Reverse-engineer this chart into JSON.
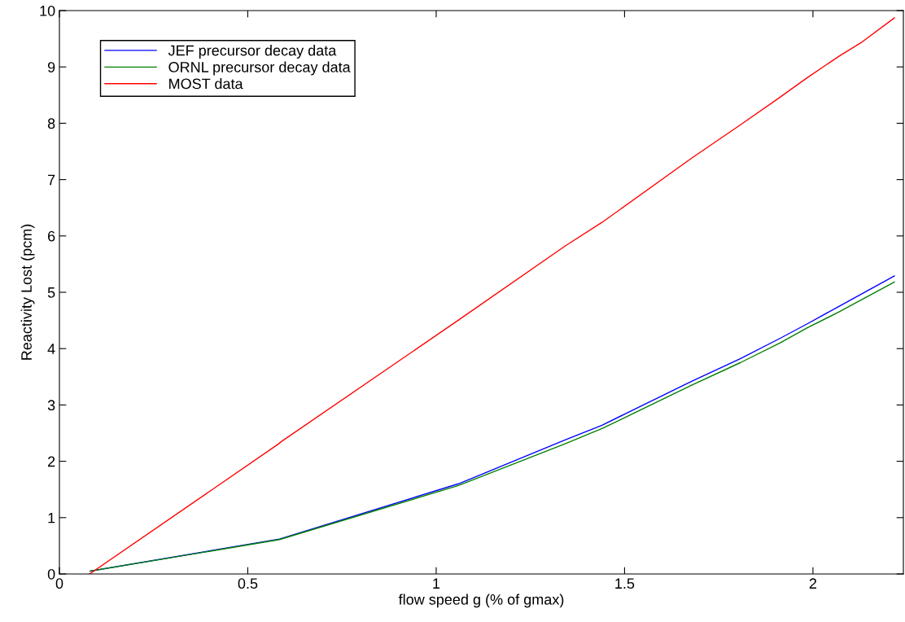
{
  "chart_data": {
    "type": "line",
    "xlabel": "flow speed g (% of gmax)",
    "ylabel": "Reactivity Lost (pcm)",
    "xlim": [
      0,
      2.24
    ],
    "xticks": [
      0,
      0.5,
      1,
      1.5,
      2
    ],
    "ylim": [
      0,
      10
    ],
    "yticks": [
      0,
      1,
      2,
      3,
      4,
      5,
      6,
      7,
      8,
      9,
      10
    ],
    "grid": false,
    "legend": "top left",
    "line_style": "solid",
    "marker": "none",
    "series": [
      {
        "name": "JEF precursor decay data",
        "color": "#0000ff",
        "x": [
          0.082,
          0.584,
          1.059,
          1.342,
          1.44,
          1.678,
          1.807,
          1.912,
          1.985,
          2.069,
          2.216
        ],
        "values": [
          0.05,
          0.62,
          1.6,
          2.38,
          2.64,
          3.42,
          3.82,
          4.18,
          4.44,
          4.75,
          5.29
        ]
      },
      {
        "name": "ORNL precursor decay data",
        "color": "#008000",
        "x": [
          0.082,
          0.584,
          1.059,
          1.342,
          1.44,
          1.678,
          1.807,
          1.912,
          1.985,
          2.069,
          2.216
        ],
        "values": [
          0.05,
          0.61,
          1.57,
          2.31,
          2.58,
          3.35,
          3.75,
          4.1,
          4.37,
          4.65,
          5.18
        ]
      },
      {
        "name": "MOST data",
        "color": "#ff0000",
        "x": [
          0.08,
          0.582,
          0.589,
          1.06,
          1.342,
          1.44,
          1.678,
          1.807,
          1.912,
          1.985,
          2.069,
          2.132,
          2.216
        ],
        "values": [
          0,
          2.31,
          2.35,
          4.51,
          5.82,
          6.24,
          7.38,
          7.97,
          8.46,
          8.81,
          9.19,
          9.45,
          9.87
        ]
      }
    ]
  }
}
